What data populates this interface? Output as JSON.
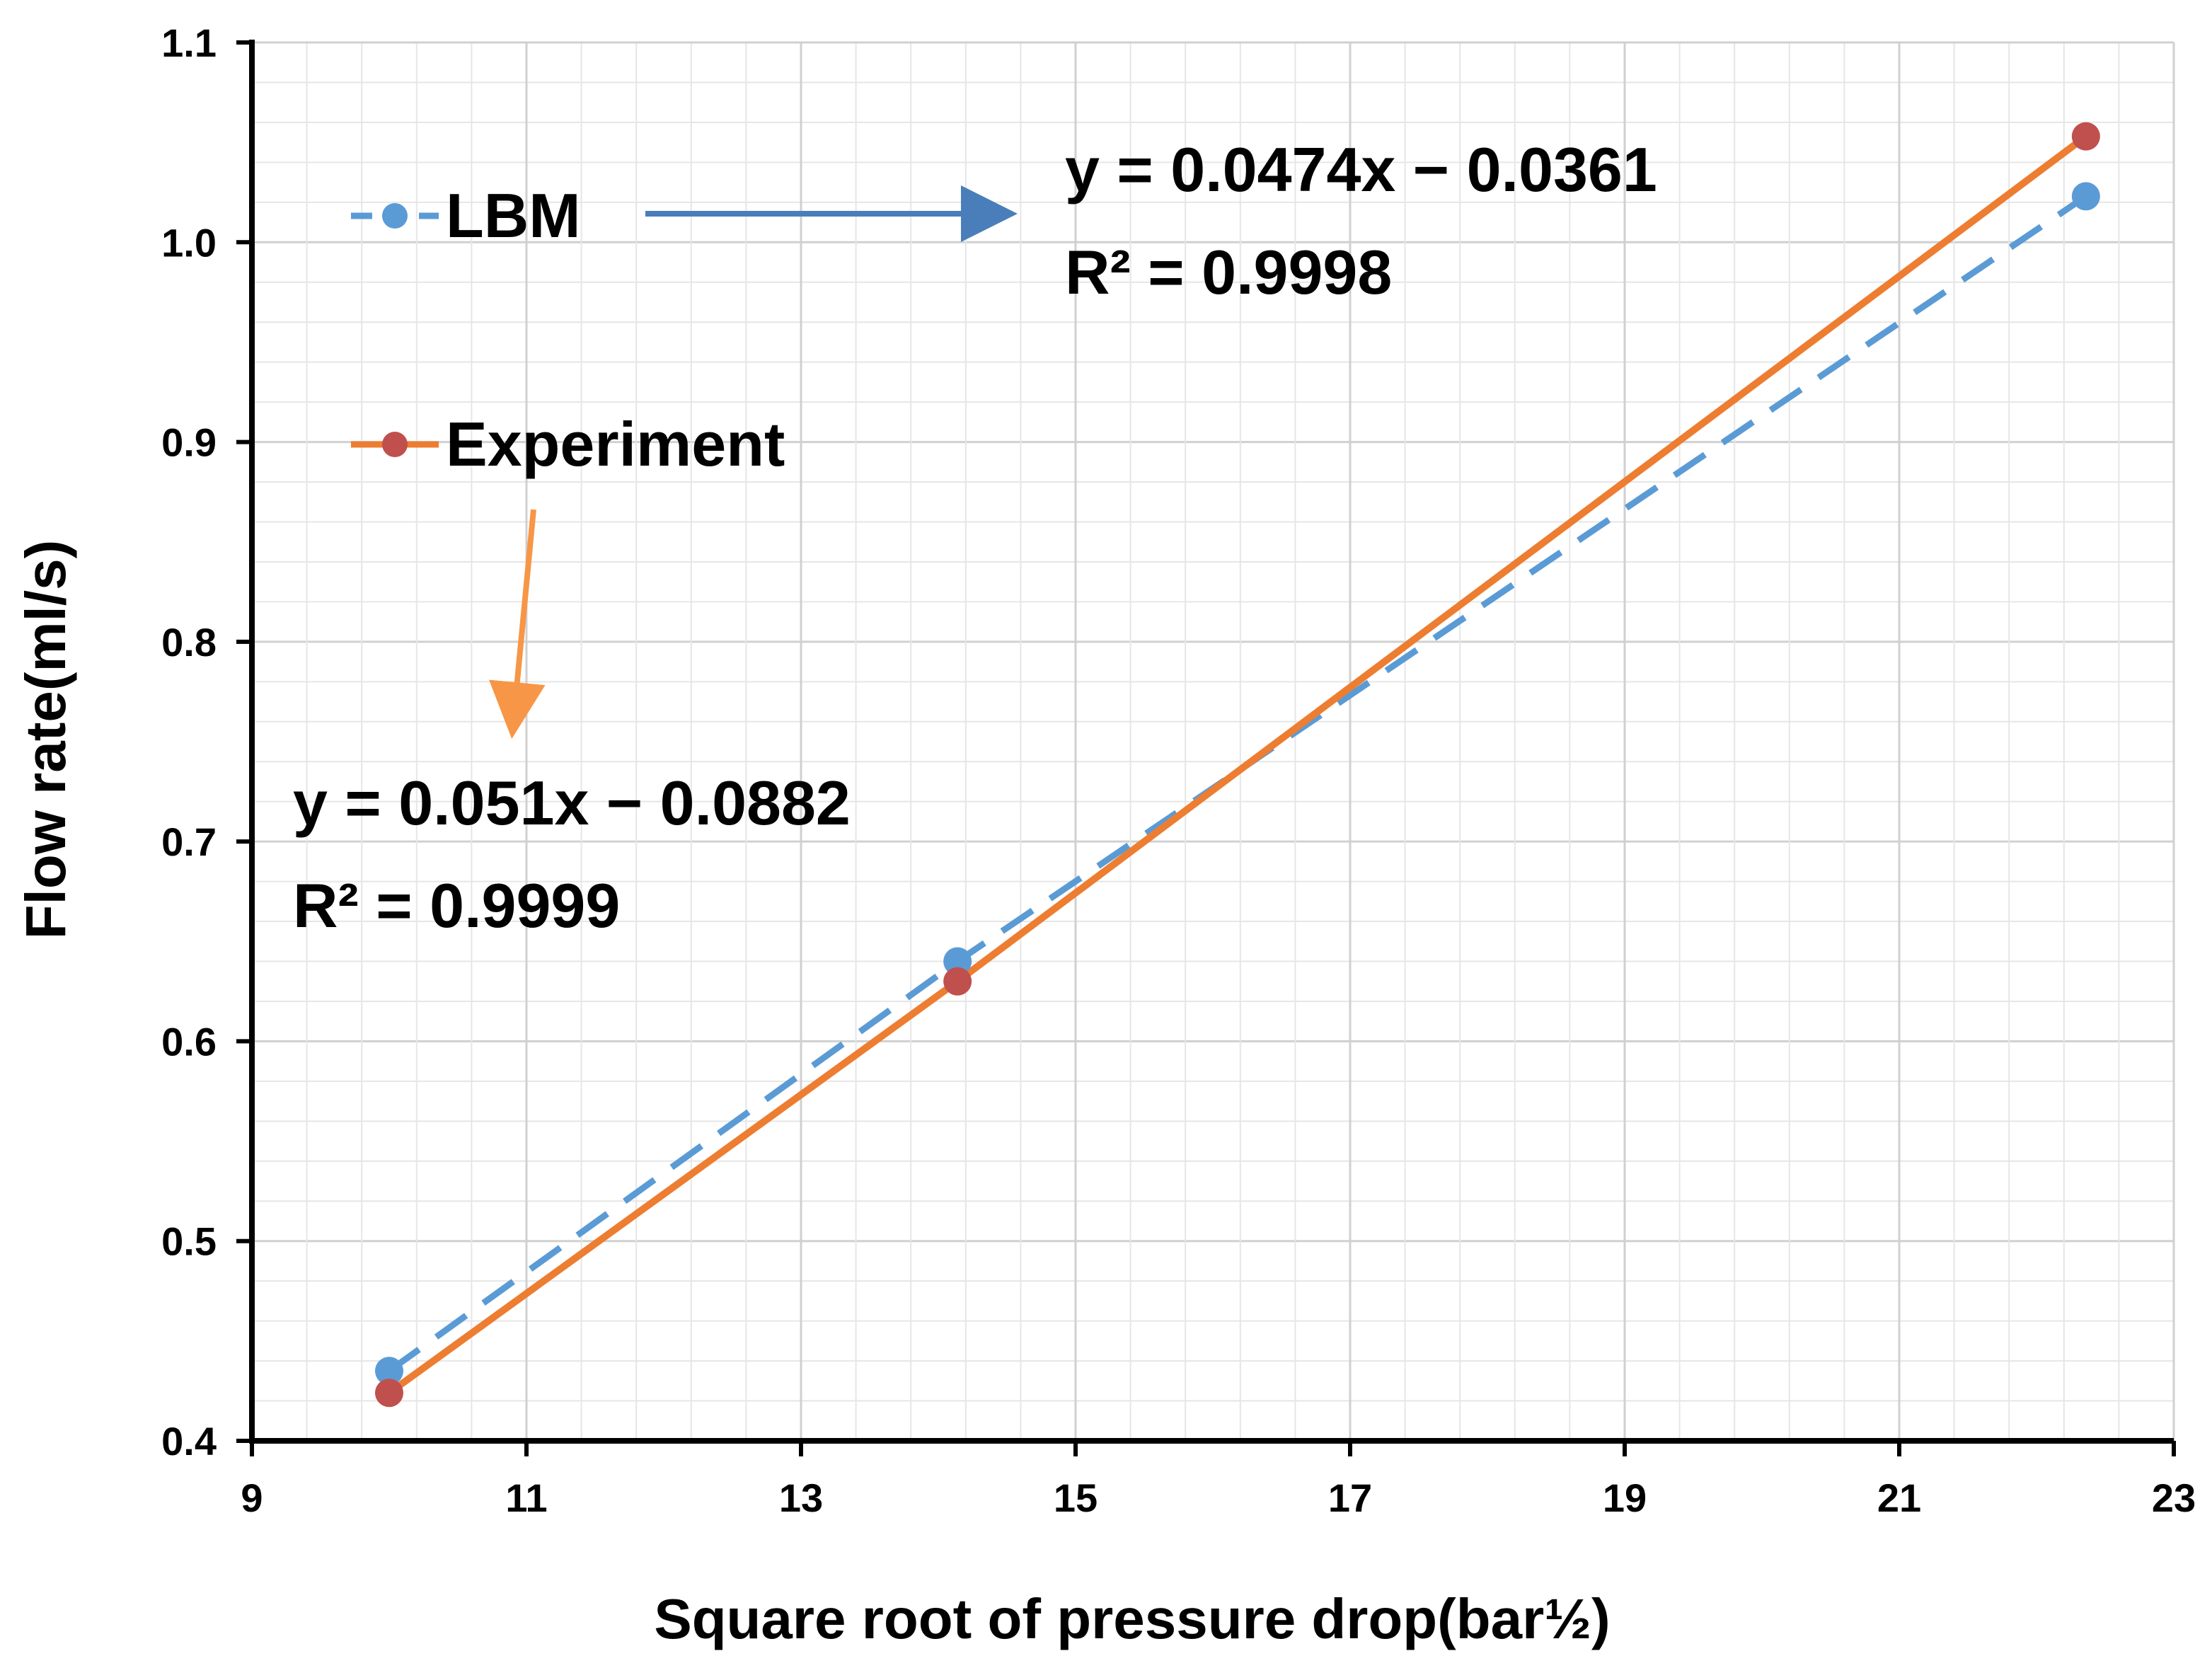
{
  "chart_data": {
    "type": "line",
    "title": "",
    "xlabel": "Square root of pressure drop(bar½)",
    "ylabel": "Flow rate(ml/s)",
    "xlim": [
      9,
      23
    ],
    "ylim": [
      0.4,
      1.1
    ],
    "x_ticks": [
      "9",
      "11",
      "13",
      "15",
      "17",
      "19",
      "21",
      "23"
    ],
    "x_tick_values": [
      9,
      11,
      13,
      15,
      17,
      19,
      21,
      23
    ],
    "y_ticks": [
      "0.4",
      "0.5",
      "0.6",
      "0.7",
      "0.8",
      "0.9",
      "1.0",
      "1.1"
    ],
    "y_tick_values": [
      0.4,
      0.5,
      0.6,
      0.7,
      0.8,
      0.9,
      1.0,
      1.1
    ],
    "grid": true,
    "series": [
      {
        "name": "LBM",
        "x": [
          10.0,
          14.14,
          22.36
        ],
        "y": [
          0.435,
          0.64,
          1.023
        ],
        "line_color": "#5b9bd5",
        "marker_color": "#5b9bd5",
        "dashed": true,
        "trendline": {
          "slope": 0.0474,
          "intercept": -0.0361,
          "equation": "y = 0.0474x − 0.0361",
          "r2": "R² = 0.9998"
        }
      },
      {
        "name": "Experiment",
        "x": [
          10.0,
          14.14,
          22.36
        ],
        "y": [
          0.424,
          0.63,
          1.053
        ],
        "line_color": "#ed7d31",
        "marker_color": "#c0504d",
        "dashed": false,
        "trendline": {
          "slope": 0.051,
          "intercept": -0.0882,
          "equation": "y = 0.051x − 0.0882",
          "r2": "R² = 0.9999"
        }
      }
    ],
    "legend": [
      {
        "label": "LBM",
        "line_color": "#5b9bd5",
        "marker_color": "#5b9bd5",
        "dashed": true
      },
      {
        "label": "Experiment",
        "line_color": "#ed7d31",
        "marker_color": "#c0504d",
        "dashed": false
      }
    ],
    "annotations": {
      "lbm_equation": "y = 0.0474x − 0.0361",
      "lbm_r2": "R² = 0.9998",
      "experiment_equation": "y = 0.051x − 0.0882",
      "experiment_r2": "R² = 0.9999",
      "lbm_arrow_color": "#4a7ebb",
      "experiment_arrow_color": "#f79646"
    }
  }
}
